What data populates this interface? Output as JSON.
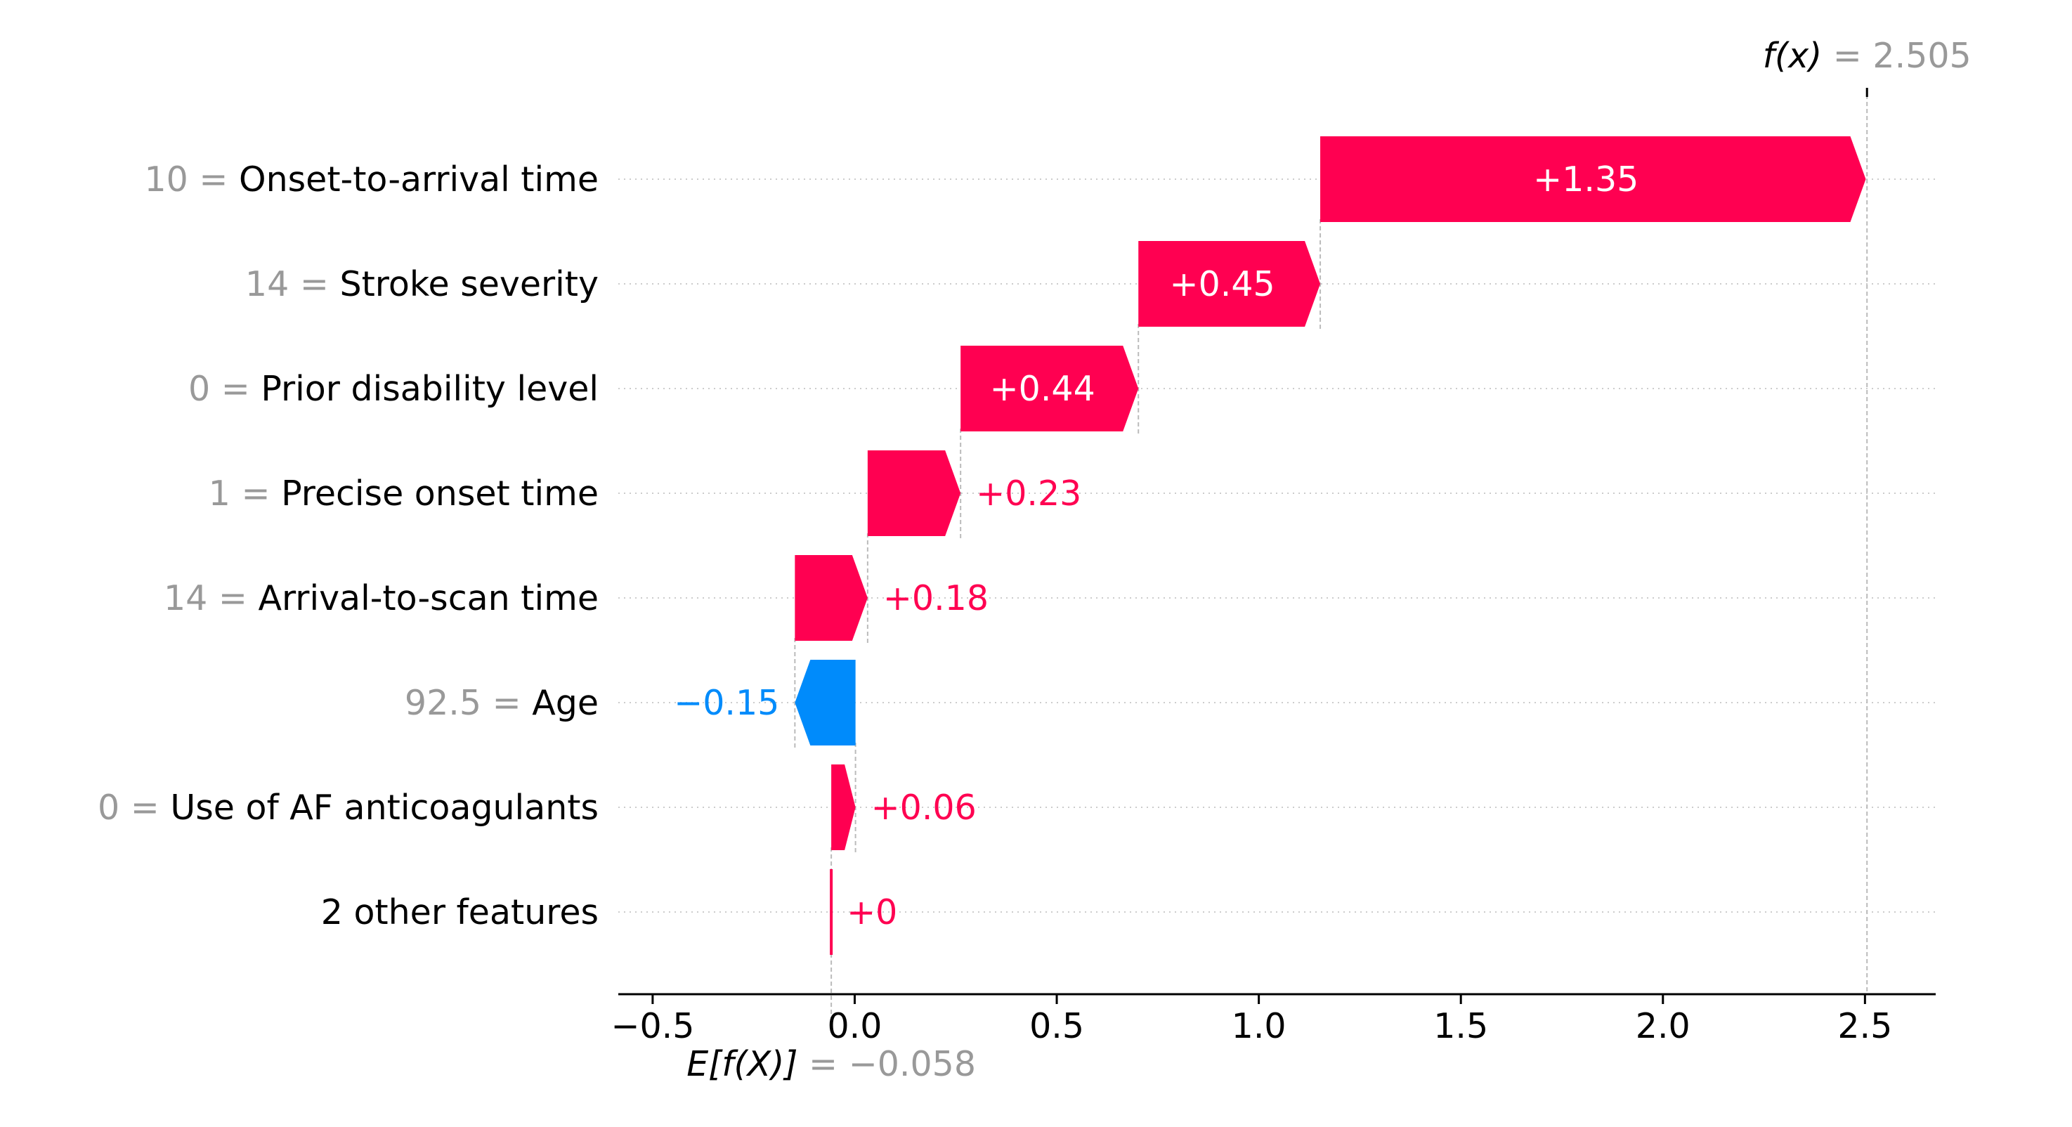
{
  "chart_data": {
    "type": "waterfall",
    "base_value": {
      "label_prefix": "E[f(X)]",
      "display": "= −0.058",
      "value": -0.058
    },
    "final_value": {
      "label_prefix": "f(x)",
      "display": "= 2.505",
      "value": 2.505
    },
    "features": [
      {
        "value_text": "10",
        "name": "Onset-to-arrival time",
        "contribution": 1.35,
        "label": "+1.35"
      },
      {
        "value_text": "14",
        "name": "Stroke severity",
        "contribution": 0.45,
        "label": "+0.45"
      },
      {
        "value_text": "0",
        "name": "Prior disability level",
        "contribution": 0.44,
        "label": "+0.44"
      },
      {
        "value_text": "1",
        "name": "Precise onset time",
        "contribution": 0.23,
        "label": "+0.23"
      },
      {
        "value_text": "14",
        "name": "Arrival-to-scan time",
        "contribution": 0.18,
        "label": "+0.18"
      },
      {
        "value_text": "92.5",
        "name": "Age",
        "contribution": -0.15,
        "label": "−0.15"
      },
      {
        "value_text": "0",
        "name": "Use of AF anticoagulants",
        "contribution": 0.06,
        "label": "+0.06"
      },
      {
        "value_text": "",
        "name": "2 other features",
        "contribution": 0.0,
        "label": "+0"
      }
    ],
    "x_ticks": [
      {
        "value": -0.5,
        "label": "−0.5"
      },
      {
        "value": 0.0,
        "label": "0.0"
      },
      {
        "value": 0.5,
        "label": "0.5"
      },
      {
        "value": 1.0,
        "label": "1.0"
      },
      {
        "value": 1.5,
        "label": "1.5"
      },
      {
        "value": 2.0,
        "label": "2.0"
      },
      {
        "value": 2.5,
        "label": "2.5"
      }
    ],
    "xlim": [
      -0.585,
      2.675
    ],
    "colors": {
      "positive": "#ff0051",
      "negative": "#008bfb",
      "muted": "#999999",
      "text": "#000000"
    }
  }
}
